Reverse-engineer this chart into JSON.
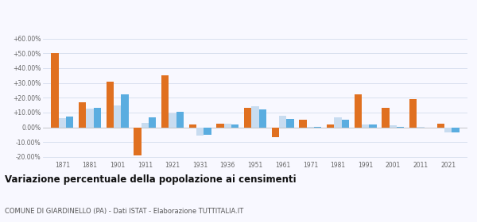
{
  "years": [
    1871,
    1881,
    1901,
    1911,
    1921,
    1931,
    1936,
    1951,
    1961,
    1971,
    1981,
    1991,
    2001,
    2011,
    2021
  ],
  "giardinello": [
    50.0,
    17.0,
    31.0,
    -19.0,
    35.0,
    2.0,
    2.5,
    13.0,
    -6.5,
    5.0,
    2.0,
    22.0,
    13.0,
    19.0,
    2.5
  ],
  "provincia_pa": [
    6.0,
    12.5,
    14.5,
    3.0,
    9.5,
    -5.5,
    2.5,
    14.0,
    8.0,
    0.5,
    6.5,
    2.0,
    1.5,
    0.5,
    -3.5
  ],
  "sicilia": [
    7.5,
    13.0,
    22.0,
    6.5,
    10.5,
    -5.0,
    2.0,
    12.0,
    5.5,
    0.5,
    5.0,
    2.0,
    0.5,
    0.0,
    -3.5
  ],
  "color_giardinello": "#e07020",
  "color_provincia": "#c8dcf0",
  "color_sicilia": "#5aade0",
  "title": "Variazione percentuale della popolazione ai censimenti",
  "subtitle": "COMUNE DI GIARDINELLO (PA) - Dati ISTAT - Elaborazione TUTTITALIA.IT",
  "ylim": [
    -22,
    68
  ],
  "yticks": [
    -20,
    -10,
    0,
    10,
    20,
    30,
    40,
    50,
    60
  ],
  "ytick_labels": [
    "-20.00%",
    "-10.00%",
    "0.00%",
    "+10.00%",
    "+20.00%",
    "+30.00%",
    "+40.00%",
    "+50.00%",
    "+60.00%"
  ],
  "background_color": "#f8f8ff",
  "grid_color": "#d4dced"
}
